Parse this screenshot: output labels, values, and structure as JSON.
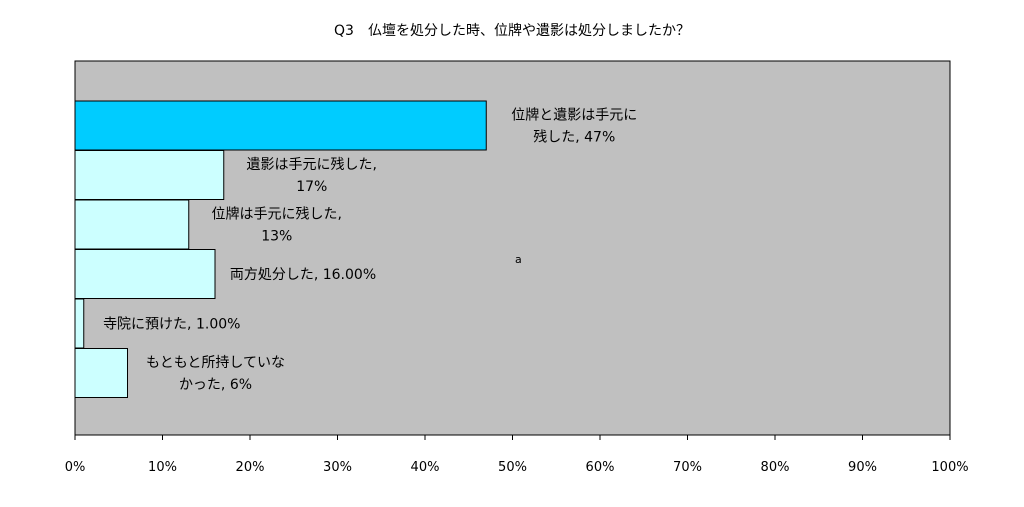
{
  "chart_data": {
    "type": "bar",
    "orientation": "horizontal",
    "title": "Q3　仏壇を処分した時、位牌や遺影は処分しましたか？",
    "xlim": [
      0,
      100
    ],
    "x_ticks": [
      "0%",
      "10%",
      "20%",
      "30%",
      "40%",
      "50%",
      "60%",
      "70%",
      "80%",
      "90%",
      "100%"
    ],
    "grid": false,
    "legend": "none",
    "plot_background": "#c0c0c0",
    "annotation": "a",
    "series": [
      {
        "values": [
          47,
          17,
          13,
          16,
          1,
          6
        ],
        "categories": [
          "位牌と遺影は手元に残した",
          "遺影は手元に残した",
          "位牌は手元に残した",
          "両方処分した",
          "寺院に預けた",
          "もともと所持していなかった"
        ],
        "colors": [
          "#00ccff",
          "#ccffff",
          "#ccffff",
          "#ccffff",
          "#ccffff",
          "#ccffff"
        ],
        "data_labels": [
          [
            "位牌と遺影は手元に",
            "残した, 47%"
          ],
          [
            "遺影は手元に残した,",
            "17%"
          ],
          [
            "位牌は手元に残した,",
            "13%"
          ],
          [
            "両方処分した, 16.00%"
          ],
          [
            "寺院に預けた, 1.00%"
          ],
          [
            "もともと所持していな",
            "かった, 6%"
          ]
        ]
      }
    ]
  }
}
